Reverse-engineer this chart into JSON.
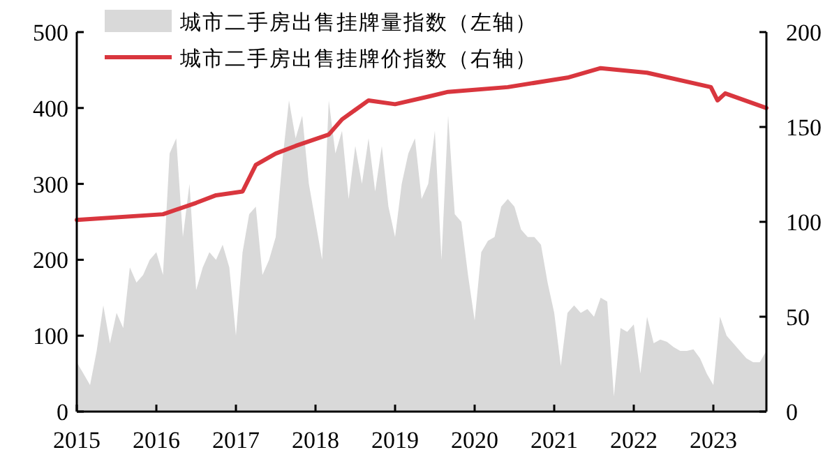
{
  "chart_data": {
    "type": "area",
    "legend": "top left",
    "xlim": [
      "2015-01",
      "2023-09"
    ],
    "xticks": [
      "2015",
      "2016",
      "2017",
      "2018",
      "2019",
      "2020",
      "2021",
      "2022",
      "2023"
    ],
    "ylim": [
      0,
      500
    ],
    "yticks": [
      0,
      100,
      200,
      300,
      400,
      500
    ],
    "y2lim": [
      0,
      200
    ],
    "y2ticks": [
      0,
      50,
      100,
      150,
      200
    ],
    "series": [
      {
        "name": "城市二手房出售挂牌量指数（左轴）",
        "axis": "y",
        "color": "#d9d9d9",
        "x": [
          "2015-01",
          "2015-02",
          "2015-03",
          "2015-04",
          "2015-05",
          "2015-06",
          "2015-07",
          "2015-08",
          "2015-09",
          "2015-10",
          "2015-11",
          "2015-12",
          "2016-01",
          "2016-02",
          "2016-03",
          "2016-04",
          "2016-05",
          "2016-06",
          "2016-07",
          "2016-08",
          "2016-09",
          "2016-10",
          "2016-11",
          "2016-12",
          "2017-01",
          "2017-02",
          "2017-03",
          "2017-04",
          "2017-05",
          "2017-06",
          "2017-07",
          "2017-08",
          "2017-09",
          "2017-10",
          "2017-11",
          "2017-12",
          "2018-01",
          "2018-02",
          "2018-03",
          "2018-04",
          "2018-05",
          "2018-06",
          "2018-07",
          "2018-08",
          "2018-09",
          "2018-10",
          "2018-11",
          "2018-12",
          "2019-01",
          "2019-02",
          "2019-03",
          "2019-04",
          "2019-05",
          "2019-06",
          "2019-07",
          "2019-08",
          "2019-09",
          "2019-10",
          "2019-11",
          "2019-12",
          "2020-01",
          "2020-02",
          "2020-03",
          "2020-04",
          "2020-05",
          "2020-06",
          "2020-07",
          "2020-08",
          "2020-09",
          "2020-10",
          "2020-11",
          "2020-12",
          "2021-01",
          "2021-02",
          "2021-03",
          "2021-04",
          "2021-05",
          "2021-06",
          "2021-07",
          "2021-08",
          "2021-09",
          "2021-10",
          "2021-11",
          "2021-12",
          "2022-01",
          "2022-02",
          "2022-03",
          "2022-04",
          "2022-05",
          "2022-06",
          "2022-07",
          "2022-08",
          "2022-09",
          "2022-10",
          "2022-11",
          "2022-12",
          "2023-01",
          "2023-02",
          "2023-03",
          "2023-04",
          "2023-05",
          "2023-06",
          "2023-07",
          "2023-08",
          "2023-09"
        ],
        "values": [
          65,
          50,
          35,
          80,
          140,
          90,
          130,
          110,
          190,
          170,
          180,
          200,
          210,
          180,
          340,
          360,
          230,
          300,
          160,
          190,
          210,
          200,
          220,
          190,
          100,
          210,
          260,
          270,
          180,
          200,
          230,
          330,
          410,
          360,
          390,
          300,
          250,
          200,
          410,
          340,
          370,
          280,
          350,
          300,
          360,
          290,
          350,
          270,
          230,
          300,
          340,
          360,
          280,
          300,
          370,
          200,
          390,
          260,
          250,
          180,
          120,
          210,
          225,
          230,
          270,
          280,
          270,
          240,
          230,
          230,
          220,
          170,
          130,
          60,
          130,
          140,
          130,
          135,
          125,
          150,
          145,
          20,
          110,
          105,
          115,
          50,
          125,
          90,
          95,
          92,
          85,
          80,
          80,
          82,
          70,
          50,
          35,
          125,
          100,
          90,
          80,
          70,
          65,
          65,
          80
        ]
      },
      {
        "name": "城市二手房出售挂牌价指数（右轴）",
        "type": "line",
        "axis": "y2",
        "color": "#d9363e",
        "x": [
          "2015-01",
          "2016-02",
          "2016-07",
          "2016-10",
          "2017-02",
          "2017-04",
          "2017-07",
          "2017-10",
          "2018-03",
          "2018-05",
          "2018-09",
          "2019-01",
          "2019-06",
          "2019-09",
          "2020-06",
          "2021-03",
          "2021-08",
          "2022-03",
          "2022-12-20",
          "2023-01-20",
          "2023-02-25",
          "2023-09"
        ],
        "values": [
          101,
          104,
          110,
          114,
          116,
          130,
          136,
          140,
          146,
          154,
          164,
          162,
          166,
          168.5,
          171,
          176,
          181,
          178.6,
          171,
          164,
          167.7,
          160
        ]
      }
    ]
  }
}
